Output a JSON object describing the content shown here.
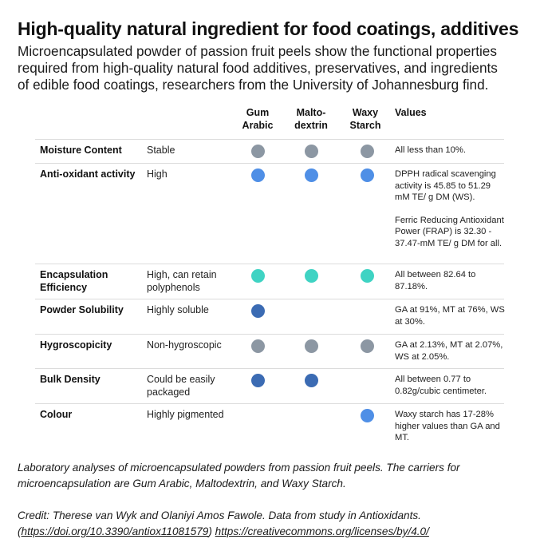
{
  "header": {
    "title": "High-quality natural ingredient for food coatings, additives",
    "subtitle_lines": [
      "Microencapsulated powder of passion fruit peels show the functional properties",
      "required from high-quality natural food additives, preservatives, and ingredients",
      "of edible food coatings, researchers from the University of Johannesburg find."
    ]
  },
  "colors": {
    "gray": "#8c97a3",
    "light_blue": "#4f8fe6",
    "teal": "#3fd3c3",
    "dark_blue": "#3b6bb3"
  },
  "table": {
    "columns": {
      "gum_arabic": "Gum Arabic",
      "gum_arabic_l1": "Gum",
      "gum_arabic_l2": "Arabic",
      "maltodextrin_l1": "Malto-",
      "maltodextrin_l2": "dextrin",
      "waxy_starch_l1": "Waxy",
      "waxy_starch_l2": "Starch",
      "values": "Values"
    },
    "rows": [
      {
        "property": "Moisture Content",
        "description": "Stable",
        "markers": [
          "gray",
          "gray",
          "gray"
        ],
        "values": [
          "All less than 10%."
        ]
      },
      {
        "property": "Anti-oxidant activity",
        "description": "High",
        "markers": [
          "light_blue",
          "light_blue",
          "light_blue"
        ],
        "values": [
          "DPPH radical scavenging activity  is 45.85 to 51.29 mM TE/ g DM (WS).",
          "Ferric Reducing Antioxidant Power (FRAP) is 32.30 - 37.47-mM TE/ g DM for all."
        ]
      },
      {
        "property": "Encapsulation Efficiency",
        "description": "High, can retain polyphenols",
        "markers": [
          "teal",
          "teal",
          "teal"
        ],
        "values": [
          "All between 82.64 to 87.18%."
        ]
      },
      {
        "property": "Powder Solubility",
        "description": "Highly soluble",
        "markers": [
          "dark_blue",
          null,
          null
        ],
        "values": [
          "GA at 91%, MT at 76%, WS at 30%."
        ]
      },
      {
        "property": "Hygroscopicity",
        "description": "Non-hygroscopic",
        "markers": [
          "gray",
          "gray",
          "gray"
        ],
        "values": [
          "GA at 2.13%, MT at 2.07%, WS at 2.05%."
        ]
      },
      {
        "property": "Bulk Density",
        "description": "Could be easily packaged",
        "markers": [
          "dark_blue",
          "dark_blue",
          null
        ],
        "values": [
          "All between 0.77 to 0.82g/cubic centimeter."
        ]
      },
      {
        "property": "Colour",
        "description": "Highly pigmented",
        "markers": [
          null,
          null,
          "light_blue"
        ],
        "values": [
          "Waxy starch has 17-28% higher values than GA and MT."
        ]
      }
    ]
  },
  "footer": {
    "caption_line1": "Laboratory analyses of microencapsulated powders from passion fruit peels. The carriers for",
    "caption_line2": "microencapsulation are Gum Arabic, Maltodextrin, and Waxy Starch.",
    "credit_text": "Credit: Therese van Wyk and Olaniyi Amos Fawole. Data from study in Antioxidants.",
    "credit_open_paren": "(",
    "doi_link": "https://doi.org/10.3390/antiox11081579",
    "credit_close_paren": ")",
    "license_link": "https://creativecommons.org/licenses/by/4.0/"
  }
}
